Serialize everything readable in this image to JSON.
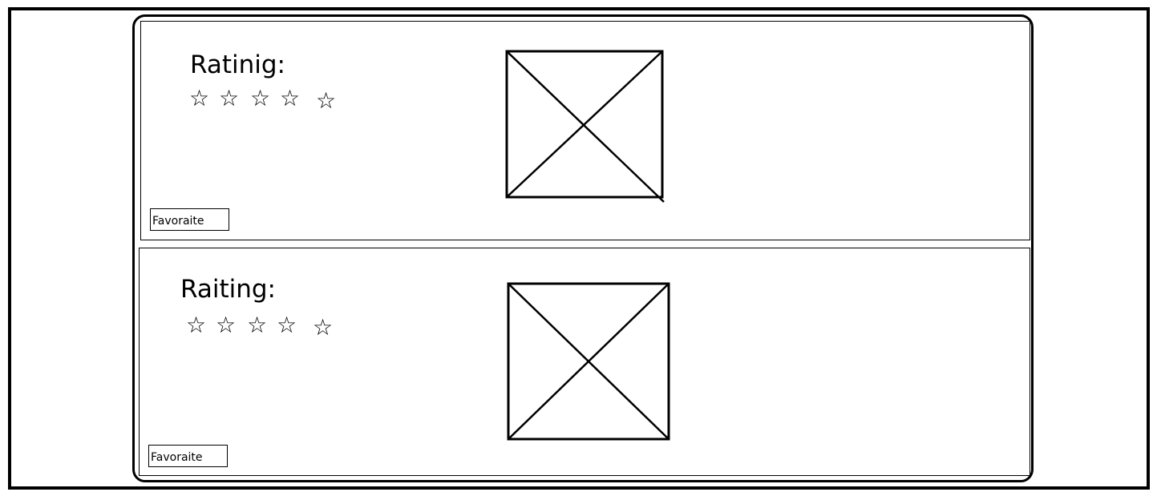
{
  "cards": [
    {
      "rating_label": "Ratinig:",
      "stars": [
        "☆",
        "☆",
        "☆",
        "☆",
        "☆"
      ],
      "favorite_label": "Favoraite"
    },
    {
      "rating_label": "Raiting:",
      "stars": [
        "☆",
        "☆",
        "☆",
        "☆",
        "☆"
      ],
      "favorite_label": "Favoraite"
    }
  ],
  "icons": {
    "star": "star-outline-icon",
    "image_placeholder": "image-placeholder-icon"
  }
}
